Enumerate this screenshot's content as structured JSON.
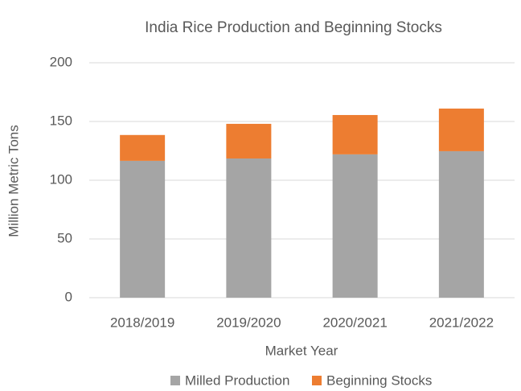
{
  "chart_data": {
    "type": "stacked-bar",
    "title": "India Rice Production and Beginning Stocks",
    "x_label": "Market Year",
    "y_label": "Million Metric Tons",
    "categories": [
      "2018/2019",
      "2019/2020",
      "2020/2021",
      "2021/2022"
    ],
    "series": [
      {
        "name": "Milled Production",
        "color": "#a5a5a5",
        "values": [
          116.5,
          118.5,
          122,
          124.7
        ]
      },
      {
        "name": "Beginning Stocks",
        "color": "#ed7d31",
        "values": [
          22,
          29.5,
          33.5,
          36.3
        ]
      }
    ],
    "ylim": [
      0,
      200
    ],
    "yticks": [
      0,
      50,
      100,
      150,
      200
    ],
    "grid": true,
    "legend": "bottom"
  }
}
